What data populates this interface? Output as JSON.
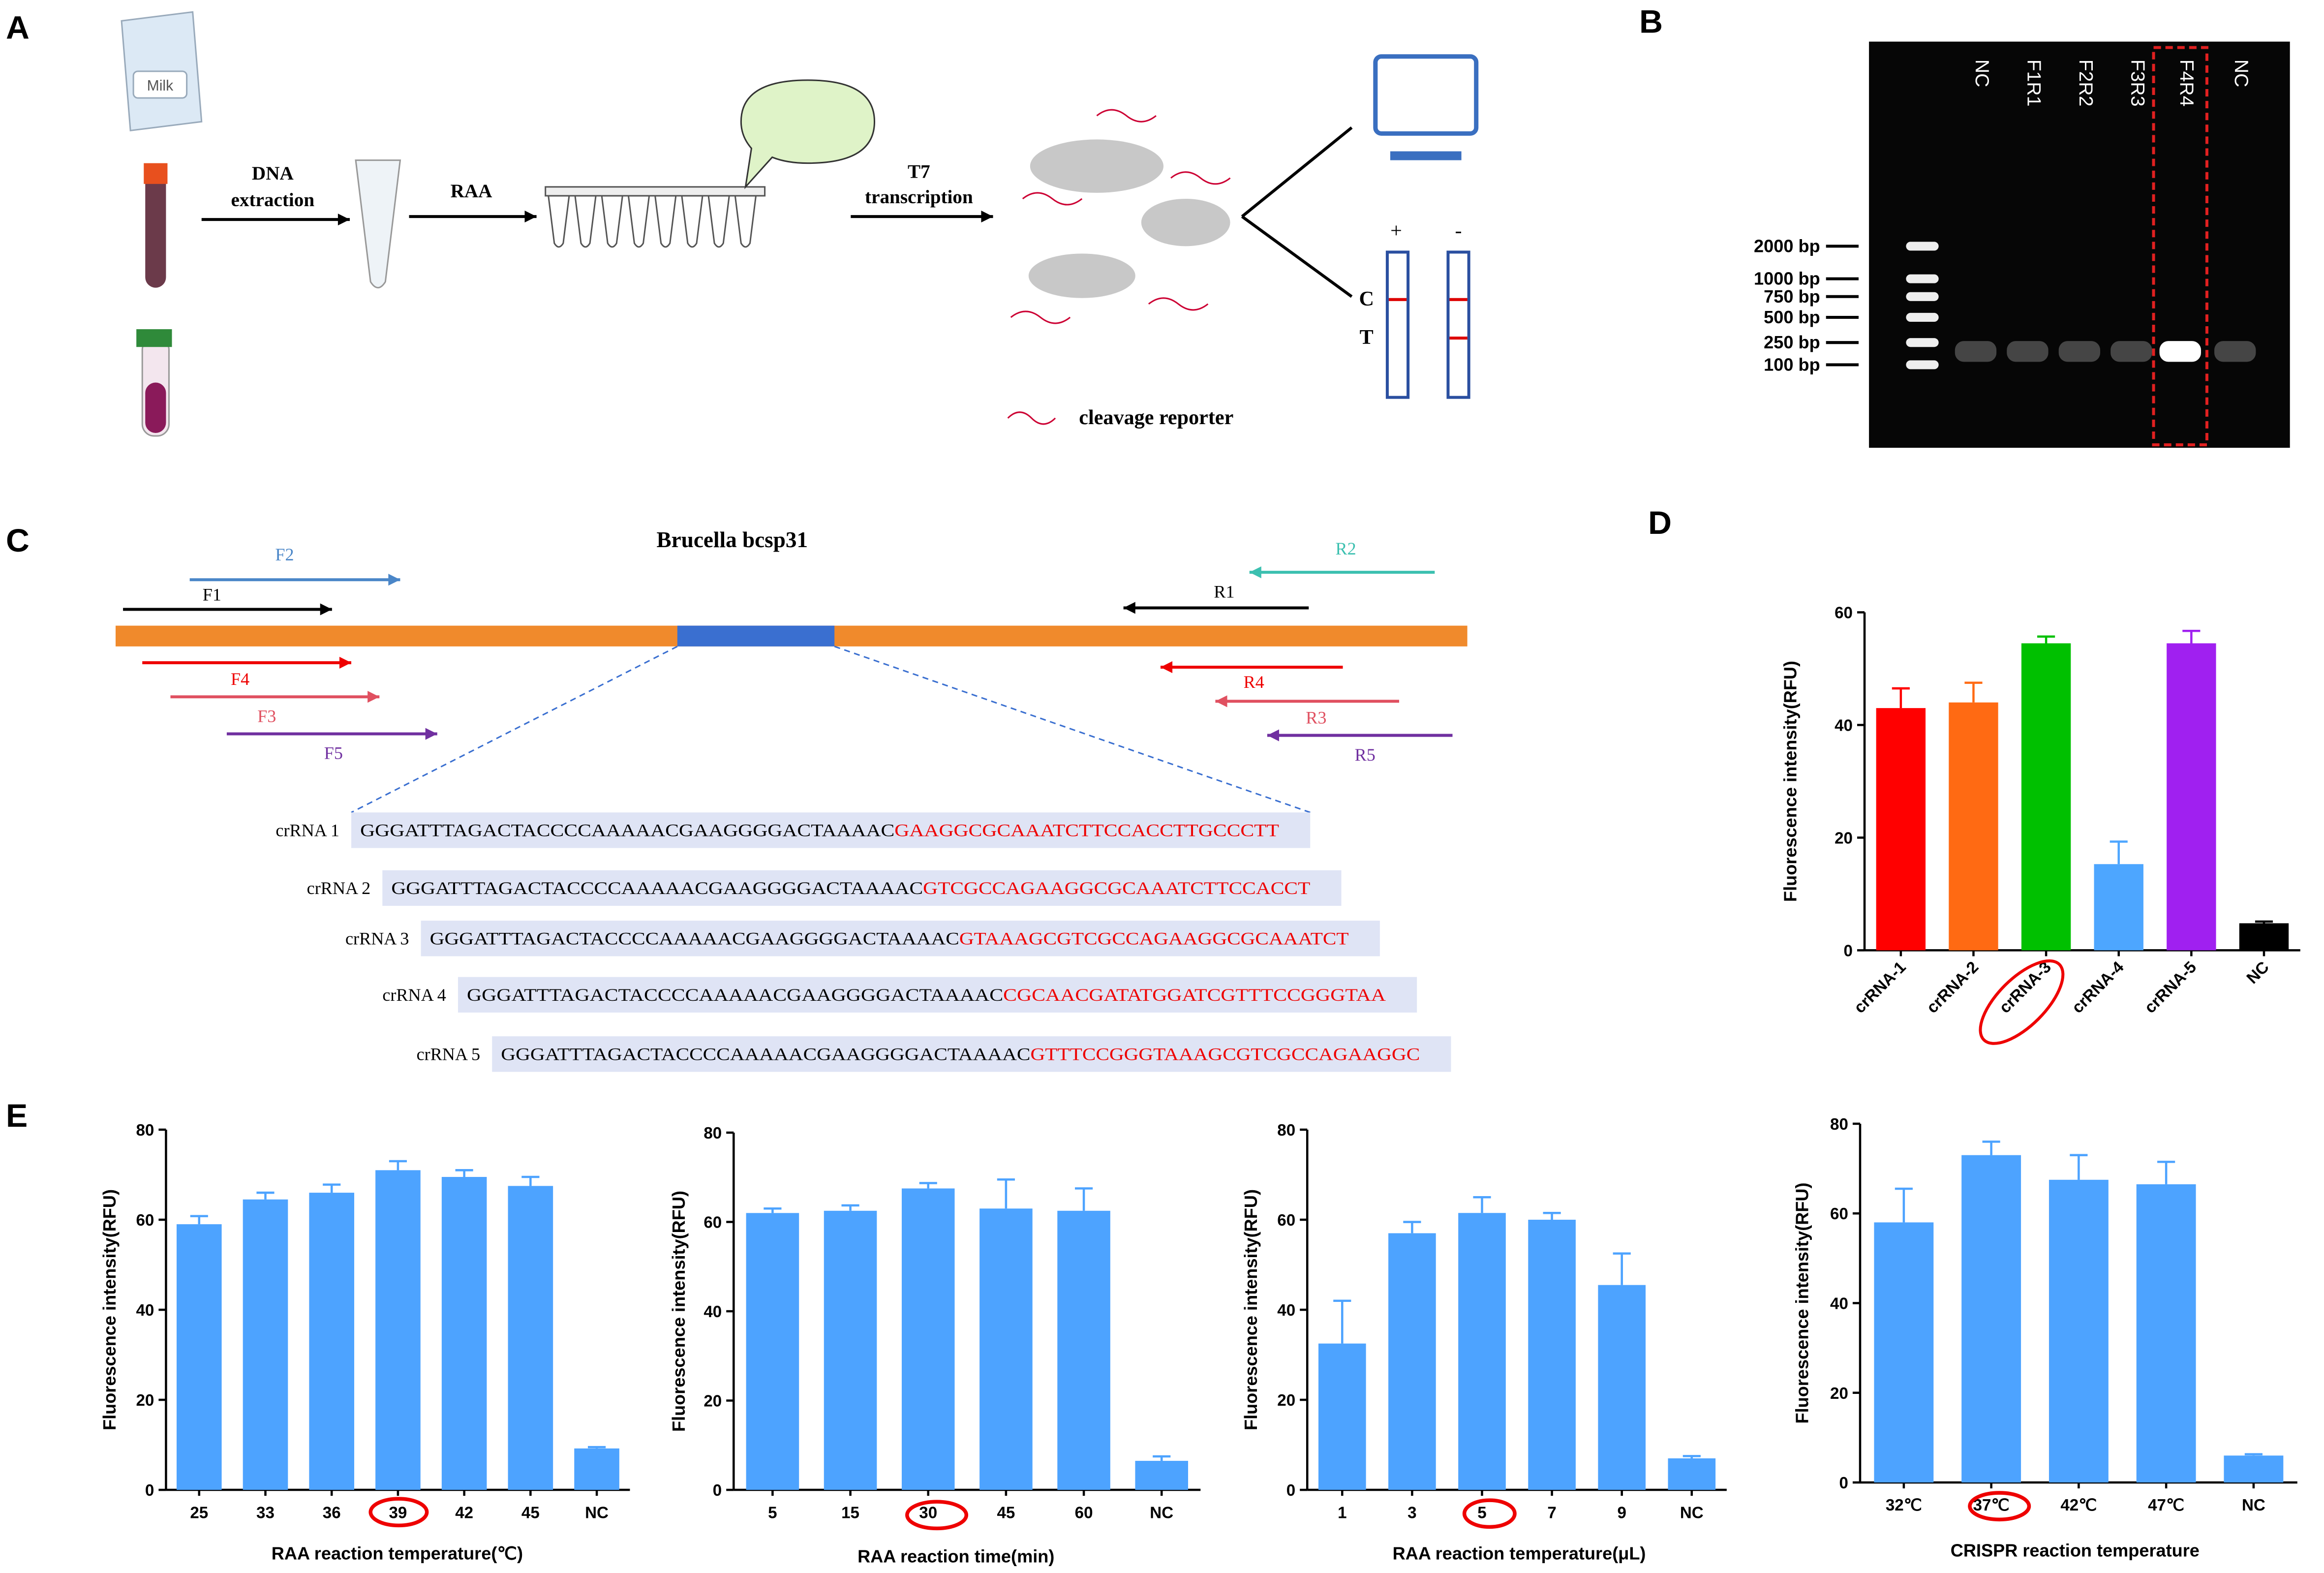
{
  "panel_labels": [
    "A",
    "B",
    "C",
    "D",
    "E"
  ],
  "schematic": {
    "milk": "Milk",
    "dna_extraction": [
      "DNA",
      "extraction"
    ],
    "raa": "RAA",
    "t7": [
      "T7",
      "transcription"
    ],
    "strip_pos": "+",
    "strip_neg": "-",
    "control_line": "C",
    "test_line": "T",
    "reporter": "cleavage reporter"
  },
  "gel": {
    "lanes": [
      "NC",
      "F1R1",
      "F2R2",
      "F3R3",
      "F4R4",
      "NC"
    ],
    "ladder": [
      "2000 bp",
      "1000 bp",
      "750 bp",
      "500 bp",
      "250 bp",
      "100 bp"
    ]
  },
  "gene": {
    "title": "Brucella bcsp31",
    "primers": [
      "F2",
      "F1",
      "R2",
      "R1",
      "F4",
      "F3",
      "F5",
      "R4",
      "R3",
      "R5"
    ]
  },
  "crrna": [
    {
      "label": "crRNA 1",
      "spacer": "GGGATTTAGACTACCCCAAAAACGAAGGGGACTAAAAC",
      "target": "GAAGGCGCAAATCTTCCACCTTGCCCTT"
    },
    {
      "label": "crRNA 2",
      "spacer": "GGGATTTAGACTACCCCAAAAACGAAGGGGACTAAAAC",
      "target": "GTCGCCAGAAGGCGCAAATCTTCCACCT"
    },
    {
      "label": "crRNA 3",
      "spacer": "GGGATTTAGACTACCCCAAAAACGAAGGGGACTAAAAC",
      "target": "GTAAAGCGTCGCCAGAAGGCGCAAATCT"
    },
    {
      "label": "crRNA 4",
      "spacer": "GGGATTTAGACTACCCCAAAAACGAAGGGGACTAAAAC",
      "target": "CGCAACGATATGGATCGTTTCCGGGTAA"
    },
    {
      "label": "crRNA 5",
      "spacer": "GGGATTTAGACTACCCCAAAAACGAAGGGGACTAAAAC",
      "target": "GTTTCCGGGTAAAGCGTCGCCAGAAGGC"
    }
  ],
  "chart_data": [
    {
      "type": "bar",
      "ylabel": "Fluorescence intensity(RFU)",
      "categories": [
        "crRNA-1",
        "crRNA-2",
        "crRNA-3",
        "crRNA-4",
        "crRNA-5",
        "NC"
      ],
      "values": [
        43,
        44,
        54.5,
        15.3,
        54.5,
        4.8
      ],
      "errors": [
        3.5,
        3.5,
        1.2,
        4,
        2.2,
        0.3
      ],
      "colors": [
        "#ff0000",
        "#ff6a13",
        "#00c000",
        "#4da6ff",
        "#a020f0",
        "#000000"
      ],
      "ylim": [
        0,
        60
      ],
      "yticks": [
        0,
        20,
        40,
        60
      ]
    },
    {
      "type": "bar",
      "ylabel": "Fluorescence intensity(RFU)",
      "xlabel": "RAA reaction temperature(℃)",
      "categories": [
        "25",
        "33",
        "36",
        "39",
        "42",
        "45",
        "NC"
      ],
      "values": [
        59,
        64.5,
        66,
        71,
        69.5,
        67.5,
        9.2
      ],
      "errors": [
        1.8,
        1.5,
        1.8,
        2,
        1.5,
        2,
        0.3
      ],
      "color": "#4da3ff",
      "ylim": [
        0,
        80
      ],
      "yticks": [
        0,
        20,
        40,
        60,
        80
      ]
    },
    {
      "type": "bar",
      "ylabel": "Fluorescence intensity(RFU)",
      "xlabel": "RAA reaction time(min)",
      "categories": [
        "5",
        "15",
        "30",
        "45",
        "60",
        "NC"
      ],
      "values": [
        62,
        62.5,
        67.5,
        63,
        62.5,
        6.5
      ],
      "errors": [
        1,
        1.2,
        1.2,
        6.5,
        5,
        1
      ],
      "color": "#4da3ff",
      "ylim": [
        0,
        80
      ],
      "yticks": [
        0,
        20,
        40,
        60,
        80
      ]
    },
    {
      "type": "bar",
      "ylabel": "Fluorescence intensity(RFU)",
      "xlabel": "RAA reaction temperature(μL)",
      "categories": [
        "1",
        "3",
        "5",
        "7",
        "9",
        "NC"
      ],
      "values": [
        32.5,
        57,
        61.5,
        60,
        45.5,
        7
      ],
      "errors": [
        9.5,
        2.5,
        3.5,
        1.5,
        7,
        0.5
      ],
      "color": "#4da3ff",
      "ylim": [
        0,
        80
      ],
      "yticks": [
        0,
        20,
        40,
        60,
        80
      ]
    },
    {
      "type": "bar",
      "ylabel": "Fluorescence intensity(RFU)",
      "xlabel": "CRISPR reaction temperature",
      "categories": [
        "32℃",
        "37℃",
        "42℃",
        "47℃",
        "NC"
      ],
      "values": [
        58,
        73,
        67.5,
        66.5,
        6
      ],
      "errors": [
        7.5,
        3,
        5.5,
        5,
        0.3
      ],
      "color": "#4da3ff",
      "ylim": [
        0,
        80
      ],
      "yticks": [
        0,
        20,
        40,
        60,
        80
      ]
    }
  ]
}
